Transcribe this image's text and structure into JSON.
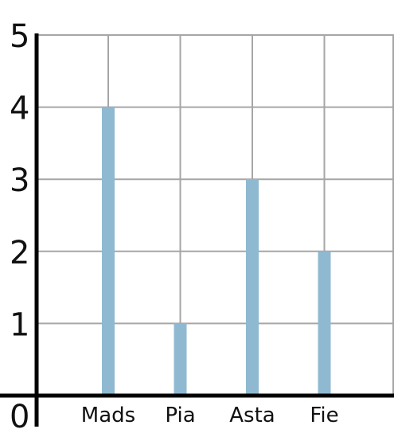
{
  "chart_data": {
    "type": "bar",
    "title": "",
    "xlabel": "",
    "ylabel": "",
    "categories": [
      "Mads",
      "Pia",
      "Asta",
      "Fie"
    ],
    "values": [
      4,
      1,
      3,
      2
    ],
    "ylim": [
      0,
      5
    ],
    "yticks": [
      0,
      1,
      2,
      3,
      4,
      5
    ],
    "grid": true,
    "legend": "none"
  },
  "colors": {
    "bar": "#8fb9d1",
    "grid": "#a6a6a6",
    "axis": "#000000"
  }
}
